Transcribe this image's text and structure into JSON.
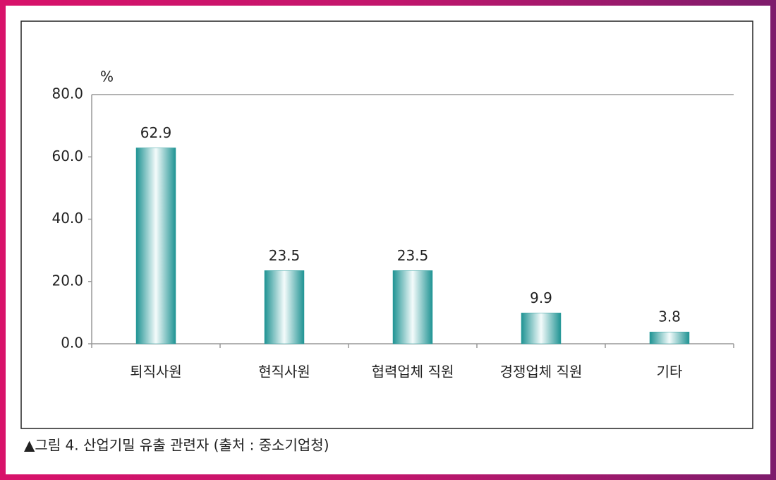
{
  "chart_data": {
    "type": "bar",
    "y_unit": "%",
    "categories": [
      "퇴직사원",
      "현직사원",
      "협력업체 직원",
      "경쟁업체 직원",
      "기타"
    ],
    "values": [
      62.9,
      23.5,
      23.5,
      9.9,
      3.8
    ],
    "color": "#2a9c9c",
    "ylim": [
      0,
      80
    ],
    "yticks": [
      {
        "value": 0,
        "label": "0.0"
      },
      {
        "value": 20,
        "label": "20.0"
      },
      {
        "value": 40,
        "label": "40.0"
      },
      {
        "value": 60,
        "label": "60.0"
      },
      {
        "value": 80,
        "label": "80.0"
      }
    ],
    "grid": false,
    "caption": "▲그림 4. 산업기밀 유출 관련자 (출처 : 중소기업청)"
  }
}
